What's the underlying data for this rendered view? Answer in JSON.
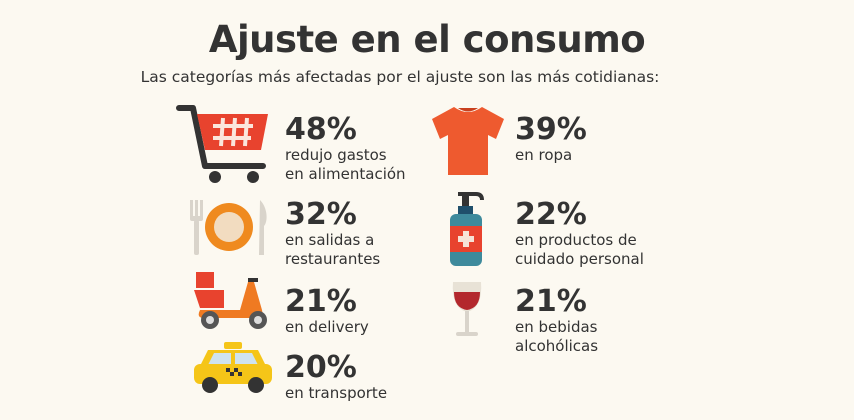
{
  "title": "Ajuste en el consumo",
  "subtitle": "Las categorías más afectadas por el ajuste son las más cotidianas:",
  "items": [
    {
      "icon": "shopping-cart-icon",
      "percent": "48%",
      "line1": "redujo gastos",
      "line2": "en alimentación"
    },
    {
      "icon": "plate-cutlery-icon",
      "percent": "32%",
      "line1": "en salidas a",
      "line2": "restaurantes"
    },
    {
      "icon": "delivery-scooter-icon",
      "percent": "21%",
      "line1": "en delivery",
      "line2": ""
    },
    {
      "icon": "taxi-icon",
      "percent": "20%",
      "line1": "en transporte",
      "line2": ""
    },
    {
      "icon": "t-shirt-icon",
      "percent": "39%",
      "line1": "en ropa",
      "line2": ""
    },
    {
      "icon": "soap-pump-icon",
      "percent": "22%",
      "line1": "en productos de",
      "line2": "cuidado personal"
    },
    {
      "icon": "wine-glass-icon",
      "percent": "21%",
      "line1": "en bebidas",
      "line2": "alcohólicas"
    }
  ],
  "colors": {
    "background": "#fcf9f1",
    "text": "#333333",
    "red": "#e8432e",
    "orange": "#ef8a1f",
    "shirt": "#ee5a2f",
    "teal": "#3e8a9c",
    "yellow": "#f5c518"
  }
}
